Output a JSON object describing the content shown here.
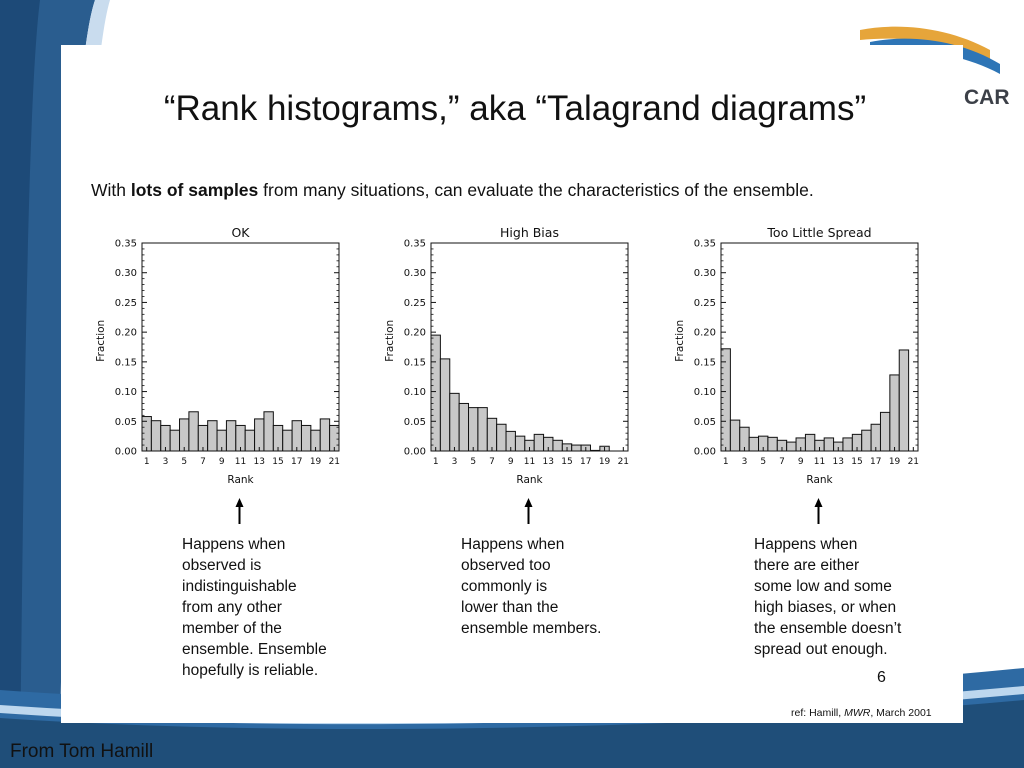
{
  "slide": {
    "title": "“Rank histograms,” aka “Talagrand diagrams”",
    "intro_pre": "With ",
    "intro_bold": "lots of samples",
    "intro_post": " from many situations, can evaluate the characteristics of the ensemble.",
    "page_number": "6",
    "ref_prefix": "ref: Hamill, ",
    "ref_journal": "MWR",
    "ref_suffix": ", March 2001",
    "footer": "From Tom Hamill",
    "logo_fragment": "CAR"
  },
  "colors": {
    "bar_fill": "#c8c8c8",
    "bar_stroke": "#111111",
    "band_dark": "#1f4e79",
    "band_mid": "#2e75b6",
    "band_light": "#bdd7ee"
  },
  "descriptions": [
    [
      "Happens when",
      "observed is",
      "indistinguishable",
      "from any other",
      "member of the",
      "ensemble. Ensemble",
      "hopefully is reliable."
    ],
    [
      "Happens when",
      "observed too",
      "commonly is",
      "lower than the",
      "ensemble members."
    ],
    [
      "Happens when",
      "there are either",
      "some low and some",
      "high biases, or when",
      "the ensemble doesn’t",
      "spread out enough."
    ]
  ],
  "chart_data": [
    {
      "type": "bar",
      "title": "OK",
      "xlabel": "Rank",
      "ylabel": "Fraction",
      "ylim": [
        0,
        0.35
      ],
      "yticks": [
        "0.00",
        "0.05",
        "0.10",
        "0.15",
        "0.20",
        "0.25",
        "0.30",
        "0.35"
      ],
      "xticks": [
        "1",
        "3",
        "5",
        "7",
        "9",
        "11",
        "13",
        "15",
        "17",
        "19",
        "21"
      ],
      "categories": [
        1,
        2,
        3,
        4,
        5,
        6,
        7,
        8,
        9,
        10,
        11,
        12,
        13,
        14,
        15,
        16,
        17,
        18,
        19,
        20,
        21
      ],
      "values": [
        0.058,
        0.051,
        0.043,
        0.035,
        0.054,
        0.066,
        0.043,
        0.051,
        0.035,
        0.051,
        0.043,
        0.035,
        0.054,
        0.066,
        0.043,
        0.035,
        0.051,
        0.043,
        0.035,
        0.054,
        0.043
      ],
      "grid": false
    },
    {
      "type": "bar",
      "title": "High Bias",
      "xlabel": "Rank",
      "ylabel": "Fraction",
      "ylim": [
        0,
        0.35
      ],
      "yticks": [
        "0.00",
        "0.05",
        "0.10",
        "0.15",
        "0.20",
        "0.25",
        "0.30",
        "0.35"
      ],
      "xticks": [
        "1",
        "3",
        "5",
        "7",
        "9",
        "11",
        "13",
        "15",
        "17",
        "19",
        "21"
      ],
      "categories": [
        1,
        2,
        3,
        4,
        5,
        6,
        7,
        8,
        9,
        10,
        11,
        12,
        13,
        14,
        15,
        16,
        17,
        18,
        19,
        20,
        21
      ],
      "values": [
        0.195,
        0.155,
        0.097,
        0.08,
        0.073,
        0.073,
        0.055,
        0.045,
        0.033,
        0.025,
        0.018,
        0.028,
        0.023,
        0.018,
        0.012,
        0.01,
        0.01,
        0.001,
        0.008,
        0.0,
        0.0
      ],
      "grid": false
    },
    {
      "type": "bar",
      "title": "Too Little Spread",
      "xlabel": "Rank",
      "ylabel": "Fraction",
      "ylim": [
        0,
        0.35
      ],
      "yticks": [
        "0.00",
        "0.05",
        "0.10",
        "0.15",
        "0.20",
        "0.25",
        "0.30",
        "0.35"
      ],
      "xticks": [
        "1",
        "3",
        "5",
        "7",
        "9",
        "11",
        "13",
        "15",
        "17",
        "19",
        "21"
      ],
      "categories": [
        1,
        2,
        3,
        4,
        5,
        6,
        7,
        8,
        9,
        10,
        11,
        12,
        13,
        14,
        15,
        16,
        17,
        18,
        19,
        20,
        21
      ],
      "values": [
        0.172,
        0.052,
        0.04,
        0.023,
        0.025,
        0.023,
        0.018,
        0.015,
        0.022,
        0.028,
        0.018,
        0.022,
        0.015,
        0.022,
        0.028,
        0.035,
        0.045,
        0.065,
        0.128,
        0.17,
        0.0
      ],
      "grid": false
    }
  ]
}
